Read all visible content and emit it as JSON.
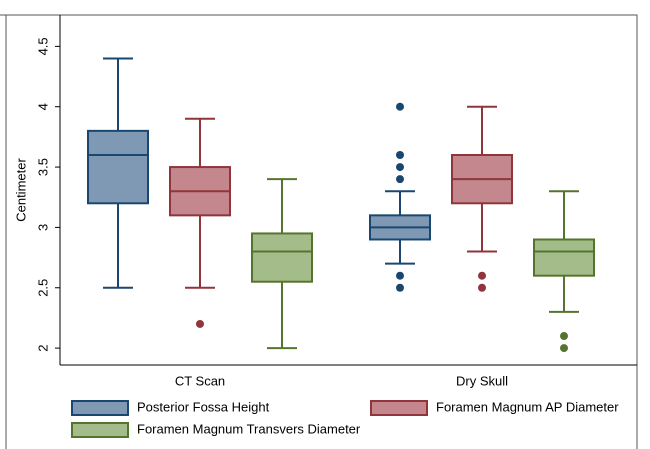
{
  "chart_data": {
    "type": "box",
    "y_label": "Centimeter",
    "categories": [
      "CT Scan",
      "Dry Skull"
    ],
    "ylim": [
      1.86,
      4.76
    ],
    "yticks": [
      2,
      2.5,
      3,
      3.5,
      4,
      4.5
    ],
    "series": [
      {
        "name": "Posterior Fossa Height",
        "color": "#7f99b5",
        "stroke": "#1a476f",
        "values": [
          {
            "min": 2.5,
            "q1": 3.2,
            "median": 3.6,
            "q3": 3.8,
            "max": 4.4,
            "outliers": []
          },
          {
            "min": 2.7,
            "q1": 2.9,
            "median": 3.0,
            "q3": 3.1,
            "max": 3.3,
            "outliers": [
              2.5,
              2.6,
              3.4,
              3.5,
              3.6,
              4.0
            ]
          }
        ]
      },
      {
        "name": "Foramen Magnum AP Diameter",
        "color": "#c4878e",
        "stroke": "#90353b",
        "values": [
          {
            "min": 2.5,
            "q1": 3.1,
            "median": 3.3,
            "q3": 3.5,
            "max": 3.9,
            "outliers": [
              2.2
            ]
          },
          {
            "min": 2.8,
            "q1": 3.2,
            "median": 3.4,
            "q3": 3.6,
            "max": 4.0,
            "outliers": [
              2.5,
              2.6
            ]
          }
        ]
      },
      {
        "name": "Foramen Magnum Transvers Diameter",
        "color": "#a3bc8a",
        "stroke": "#55752f",
        "values": [
          {
            "min": 2.0,
            "q1": 2.55,
            "median": 2.8,
            "q3": 2.95,
            "max": 3.4,
            "outliers": []
          },
          {
            "min": 2.3,
            "q1": 2.6,
            "median": 2.8,
            "q3": 2.9,
            "max": 3.3,
            "outliers": [
              2.0,
              2.1
            ]
          }
        ]
      }
    ]
  }
}
